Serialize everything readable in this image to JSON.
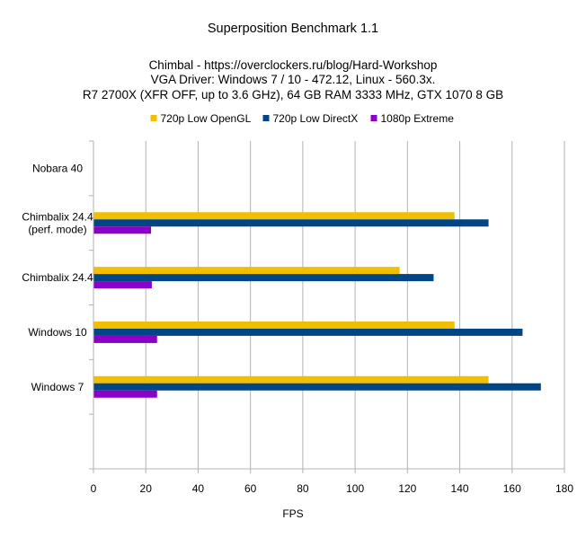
{
  "chart_data": {
    "type": "bar",
    "orientation": "horizontal",
    "title": "Superposition Benchmark 1.1",
    "subtitle": [
      "Chimbal - https://overclockers.ru/blog/Hard-Workshop",
      "VGA Driver: Windows 7 / 10 - 472.12, Linux - 560.3x.",
      "R7 2700X (XFR OFF, up to 3.6 GHz), 64 GB RAM 3333 MHz, GTX 1070 8 GB"
    ],
    "xlabel": "FPS",
    "ylabel": "",
    "xlim": [
      0,
      180
    ],
    "xticks": [
      0,
      20,
      40,
      60,
      80,
      100,
      120,
      140,
      160,
      180
    ],
    "grid": true,
    "legend_position": "top",
    "categories": [
      "Nobara 40",
      "Chimbalix 24.4\n(perf. mode)",
      "Chimbalix 24.4",
      "Windows 10",
      "Windows 7",
      ""
    ],
    "series": [
      {
        "name": "720p Low OpenGL",
        "color": "#f0c000",
        "values": [
          null,
          138,
          117,
          138,
          151,
          null
        ]
      },
      {
        "name": "720p Low DirectX",
        "color": "#004586",
        "values": [
          null,
          151,
          130,
          164,
          171,
          null
        ]
      },
      {
        "name": "1080p Extreme",
        "color": "#8b00c8",
        "values": [
          null,
          22,
          22.3,
          24.3,
          24.3,
          null
        ]
      }
    ]
  }
}
